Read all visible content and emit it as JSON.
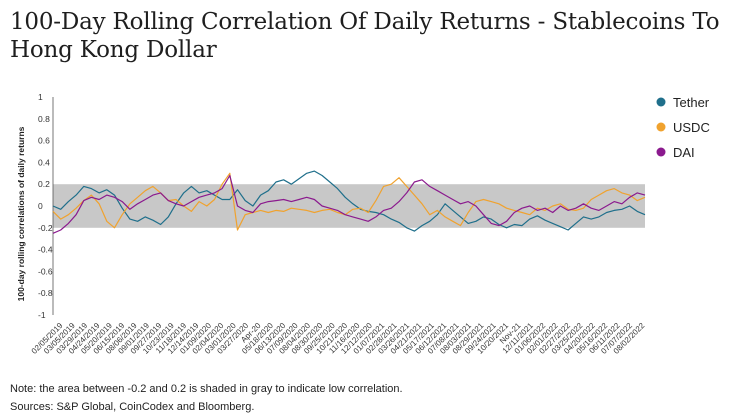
{
  "title": "100-Day Rolling Correlation Of Daily Returns - Stablecoins To Hong Kong Dollar",
  "note": "Note: the area between -0.2 and 0.2 is shaded in gray to indicate low correlation.",
  "sources": "Sources: S&P Global, CoinCodex and Bloomberg.",
  "chart_data": {
    "type": "line",
    "title": "100-Day Rolling Correlation Of Daily Returns - Stablecoins To Hong Kong Dollar",
    "xlabel": "",
    "ylabel": "100-day rolling correlations of daily returns",
    "ylim": [
      -1,
      1
    ],
    "y_ticks": [
      "1",
      "0.8",
      "0.6",
      "0.4",
      "0.2",
      "0",
      "-0.2",
      "-0.4",
      "-0.6",
      "-0.8",
      "-1"
    ],
    "shaded_band": [
      -0.2,
      0.2
    ],
    "shaded_color": "#c8c8c8",
    "grid": false,
    "legend_position": "right",
    "x_tick_labels": [
      "02/05/2019",
      "03/05/2019",
      "03/29/2019",
      "04/24/2019",
      "05/20/2019",
      "06/15/2019",
      "08/06/2019",
      "09/01/2019",
      "09/27/2019",
      "10/23/2019",
      "11/18/2019",
      "12/14/2019",
      "01/09/2020",
      "02/04/2020",
      "03/01/2020",
      "03/27/2020",
      "Apr-20",
      "05/18/2020",
      "06/13/2020",
      "07/09/2020",
      "08/04/2020",
      "08/30/2020",
      "09/25/2020",
      "10/21/2020",
      "11/16/2020",
      "12/12/2020",
      "01/07/2021",
      "02/28/2021",
      "03/26/2021",
      "04/21/2021",
      "05/17/2021",
      "06/12/2021",
      "07/08/2021",
      "08/03/2021",
      "08/29/2021",
      "09/24/2021",
      "10/20/2021",
      "Nov-21",
      "12/11/2021",
      "01/06/2022",
      "02/01/2022",
      "02/27/2022",
      "03/25/2022",
      "04/20/2022",
      "05/16/2022",
      "06/11/2022",
      "07/07/2022",
      "08/02/2022"
    ],
    "series": [
      {
        "name": "Tether",
        "color": "#1f6f8b",
        "values": [
          0.0,
          -0.03,
          0.04,
          0.1,
          0.18,
          0.16,
          0.12,
          0.15,
          0.1,
          -0.02,
          -0.12,
          -0.14,
          -0.1,
          -0.13,
          -0.17,
          -0.1,
          0.02,
          0.12,
          0.18,
          0.12,
          0.14,
          0.1,
          0.06,
          0.06,
          0.15,
          0.05,
          0.0,
          0.1,
          0.14,
          0.22,
          0.24,
          0.2,
          0.25,
          0.3,
          0.32,
          0.28,
          0.22,
          0.16,
          0.08,
          0.02,
          -0.03,
          -0.05,
          -0.06,
          -0.08,
          -0.12,
          -0.15,
          -0.2,
          -0.23,
          -0.18,
          -0.14,
          -0.08,
          0.02,
          -0.04,
          -0.1,
          -0.16,
          -0.14,
          -0.1,
          -0.12,
          -0.17,
          -0.2,
          -0.17,
          -0.18,
          -0.12,
          -0.09,
          -0.13,
          -0.16,
          -0.19,
          -0.22,
          -0.16,
          -0.1,
          -0.12,
          -0.1,
          -0.06,
          -0.04,
          -0.03,
          0.0,
          -0.05,
          -0.08
        ]
      },
      {
        "name": "USDC",
        "color": "#f0a22e",
        "values": [
          -0.05,
          -0.12,
          -0.08,
          -0.02,
          0.05,
          0.1,
          0.02,
          -0.14,
          -0.2,
          -0.08,
          0.02,
          0.08,
          0.14,
          0.18,
          0.12,
          0.05,
          0.06,
          0.0,
          -0.05,
          0.04,
          0.0,
          0.06,
          0.2,
          0.3,
          -0.22,
          -0.08,
          -0.06,
          -0.04,
          -0.06,
          -0.04,
          -0.05,
          -0.02,
          -0.03,
          -0.04,
          -0.06,
          -0.04,
          -0.03,
          -0.06,
          -0.08,
          -0.03,
          -0.02,
          -0.06,
          0.05,
          0.18,
          0.2,
          0.26,
          0.18,
          0.1,
          0.02,
          -0.08,
          -0.04,
          -0.1,
          -0.14,
          -0.18,
          -0.06,
          0.04,
          0.06,
          0.04,
          0.02,
          -0.02,
          -0.04,
          -0.06,
          -0.08,
          -0.02,
          -0.04,
          0.0,
          0.02,
          -0.03,
          -0.04,
          -0.02,
          0.06,
          0.1,
          0.14,
          0.16,
          0.12,
          0.1,
          0.05,
          0.08
        ]
      },
      {
        "name": "DAI",
        "color": "#8b1a8e",
        "values": [
          -0.25,
          -0.22,
          -0.16,
          -0.08,
          0.05,
          0.08,
          0.06,
          0.1,
          0.08,
          0.04,
          -0.03,
          0.02,
          0.06,
          0.1,
          0.12,
          0.05,
          0.02,
          0.0,
          0.04,
          0.08,
          0.1,
          0.12,
          0.16,
          0.28,
          0.0,
          -0.04,
          -0.06,
          0.02,
          0.04,
          0.05,
          0.06,
          0.04,
          0.06,
          0.08,
          0.06,
          0.0,
          -0.02,
          -0.04,
          -0.08,
          -0.1,
          -0.12,
          -0.14,
          -0.1,
          -0.04,
          -0.02,
          0.04,
          0.12,
          0.22,
          0.24,
          0.18,
          0.14,
          0.1,
          0.06,
          0.02,
          0.04,
          0.0,
          -0.08,
          -0.16,
          -0.18,
          -0.14,
          -0.06,
          -0.02,
          0.0,
          -0.04,
          -0.02,
          -0.06,
          0.0,
          -0.04,
          -0.02,
          0.02,
          -0.02,
          -0.04,
          0.0,
          0.04,
          0.02,
          0.08,
          0.12,
          0.1
        ]
      }
    ]
  }
}
